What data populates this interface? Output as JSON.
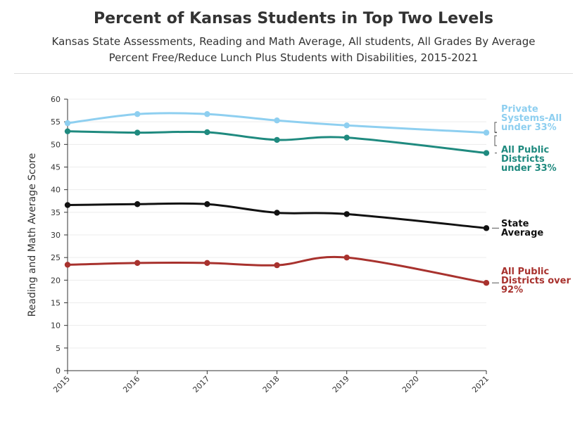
{
  "chart_data": {
    "type": "line",
    "title": "Percent of Kansas Students in Top Two Levels",
    "subtitle_lines": [
      "Kansas State Assessments, Reading and Math Average, All students, All Grades By Average",
      "Percent Free/Reduce Lunch Plus Students with Disabilities, 2015-2021"
    ],
    "xlabel": "",
    "ylabel": "Reading and Math Average Score",
    "x_ticks": [
      "2015",
      "2016",
      "2017",
      "2018",
      "2019",
      "2020",
      "2021"
    ],
    "y_ticks": [
      0,
      5,
      10,
      15,
      20,
      25,
      30,
      35,
      40,
      45,
      50,
      55,
      60
    ],
    "xlim": [
      2015,
      2021
    ],
    "ylim": [
      0,
      60
    ],
    "grid": true,
    "series": [
      {
        "name": "Private Systems-All under 33%",
        "label_lines": [
          "Private",
          "Systems-All",
          "under 33%"
        ],
        "color": "#8ecff0",
        "points": [
          [
            2015,
            54.7
          ],
          [
            2016,
            56.7
          ],
          [
            2017,
            56.7
          ],
          [
            2018,
            55.3
          ],
          [
            2019,
            54.2
          ],
          [
            2021,
            52.6
          ]
        ]
      },
      {
        "name": "All Public Districts under 33%",
        "label_lines": [
          "All Public",
          "Districts",
          "under 33%"
        ],
        "color": "#1f8a7f",
        "points": [
          [
            2015,
            52.9
          ],
          [
            2016,
            52.6
          ],
          [
            2017,
            52.7
          ],
          [
            2018,
            51.0
          ],
          [
            2019,
            51.5
          ],
          [
            2021,
            48.1
          ]
        ]
      },
      {
        "name": "State Average",
        "label_lines": [
          "State",
          "Average"
        ],
        "color": "#111111",
        "points": [
          [
            2015,
            36.6
          ],
          [
            2016,
            36.8
          ],
          [
            2017,
            36.8
          ],
          [
            2018,
            34.9
          ],
          [
            2019,
            34.6
          ],
          [
            2021,
            31.5
          ]
        ]
      },
      {
        "name": "All Public Districts over 92%",
        "label_lines": [
          "All Public",
          "Districts over",
          "92%"
        ],
        "color": "#a8322e",
        "points": [
          [
            2015,
            23.4
          ],
          [
            2016,
            23.8
          ],
          [
            2017,
            23.8
          ],
          [
            2018,
            23.3
          ],
          [
            2019,
            25.0
          ],
          [
            2021,
            19.4
          ]
        ]
      }
    ]
  }
}
